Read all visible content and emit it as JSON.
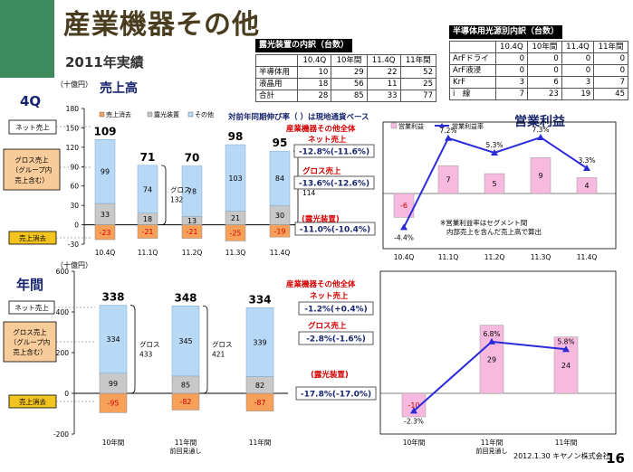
{
  "title": "産業機器その他",
  "subtitle": "2011年実績",
  "page_number": "16",
  "footer": "2012.1.30 キヤノン株式会社",
  "colors": {
    "green": "#3d8a5c",
    "blue": "#b8d9f5",
    "gray": "#c8c8c8",
    "orange": "#f6a05a",
    "pink": "#f7b9dd",
    "line": "#2a2ad8",
    "red": "#d40000",
    "navy": "#17256e"
  },
  "table_exposure": {
    "caption": "露光装置の内訳（台数）",
    "headers": [
      "",
      "10.4Q",
      "10年間",
      "11.4Q",
      "11年間"
    ],
    "rows": [
      [
        "半導体用",
        "10",
        "29",
        "22",
        "52"
      ],
      [
        "液晶用",
        "18",
        "56",
        "11",
        "25"
      ],
      [
        "合計",
        "28",
        "85",
        "33",
        "77"
      ]
    ]
  },
  "table_semis": {
    "caption": "半導体用光源別内訳（台数）",
    "headers": [
      "",
      "10.4Q",
      "10年間",
      "11.4Q",
      "11年間"
    ],
    "rows": [
      [
        "ArFドライ",
        "0",
        "0",
        "0",
        "0"
      ],
      [
        "ArF液浸",
        "0",
        "0",
        "0",
        "0"
      ],
      [
        "KrF",
        "3",
        "6",
        "3",
        "7"
      ],
      [
        "i　線",
        "7",
        "23",
        "19",
        "45"
      ]
    ]
  },
  "labels": {
    "q_title": "4Q",
    "a_title": "年間",
    "unit": "（十億円）",
    "sales_title": "売上高",
    "op_title": "営業利益",
    "legend_sales": [
      "売上消去",
      "露光装置",
      "その他"
    ],
    "legend_op": [
      "営業利益",
      "営業利益率"
    ],
    "yoy_note": "対前年同期伸び率（ ）は現地通貨ベース",
    "ind_total": "産業機器その他全体",
    "net_sales": "ネット売上",
    "gross_sales": "グロス売上",
    "exposure": "(露光装置)",
    "op_note_line1": "※営業利益率はセグメント間",
    "op_note_line2": "内部売上を含んだ売上高で算出",
    "side_net": "ネット売上",
    "side_gross_1": "グロス売上",
    "side_gross_2": "（グループ内",
    "side_gross_3": "売上含む）",
    "side_elim": "売上消去",
    "gross_label": "グロス"
  },
  "yoy_q": {
    "net": "-12.8%(-11.6%)",
    "gross": "-13.6%(-12.6%)",
    "exposure": "-11.0%(-10.4%)"
  },
  "yoy_a": {
    "net": "-1.2%(+0.4%)",
    "gross": "-2.8%(-1.6%)",
    "exposure": "-17.8%(-17.0%)"
  },
  "chart_data": [
    {
      "type": "bar",
      "title": "売上高",
      "stacked": true,
      "categories": [
        "10.4Q",
        "11.1Q",
        "11.2Q",
        "11.3Q",
        "11.4Q"
      ],
      "series": [
        {
          "name": "売上消去",
          "values": [
            -23,
            -21,
            -21,
            -25,
            -19
          ]
        },
        {
          "name": "露光装置",
          "values": [
            33,
            18,
            13,
            21,
            30
          ]
        },
        {
          "name": "その他",
          "values": [
            99,
            74,
            78,
            103,
            84
          ]
        }
      ],
      "totals": [
        109,
        71,
        70,
        98,
        95
      ],
      "gross_annotations": [
        {
          "after_category": "11.1Q",
          "value": 132
        },
        {
          "after_category": "11.4Q",
          "value": 114
        }
      ],
      "ylim": [
        -30,
        180
      ],
      "yticks": [
        -30,
        0,
        30,
        60,
        90,
        120,
        150,
        180
      ],
      "ylabel": "（十億円）"
    },
    {
      "type": "bar",
      "title": "営業利益",
      "categories": [
        "10.4Q",
        "11.1Q",
        "11.2Q",
        "11.3Q",
        "11.4Q"
      ],
      "series": [
        {
          "name": "営業利益",
          "values": [
            -6,
            7,
            5,
            9,
            4
          ]
        },
        {
          "name": "営業利益率",
          "type": "line",
          "values": [
            -4.4,
            7.2,
            5.3,
            7.3,
            3.3
          ],
          "labels": [
            "-4.4%",
            "7.2%",
            "5.3%",
            "7.3%",
            "3.3%"
          ]
        }
      ]
    },
    {
      "type": "bar",
      "title": "売上高",
      "stacked": true,
      "categories": [
        "10年間",
        "11年間",
        "11年間"
      ],
      "category_sublabels": [
        "",
        "前回見通し",
        ""
      ],
      "series": [
        {
          "name": "売上消去",
          "values": [
            -95,
            -82,
            -87
          ]
        },
        {
          "name": "露光装置",
          "values": [
            99,
            85,
            82
          ]
        },
        {
          "name": "その他",
          "values": [
            334,
            345,
            339
          ]
        }
      ],
      "totals": [
        338,
        348,
        334
      ],
      "gross_annotations": [
        {
          "after_category": "10年間",
          "value": 433
        },
        {
          "after_category": "11年間",
          "value": 421
        }
      ],
      "ylim": [
        -200,
        600
      ],
      "yticks": [
        -200,
        0,
        200,
        400,
        600
      ],
      "ylabel": "（十億円）"
    },
    {
      "type": "bar",
      "title": "営業利益",
      "categories": [
        "10年間",
        "11年間",
        "11年間"
      ],
      "category_sublabels": [
        "",
        "前回見通し",
        ""
      ],
      "series": [
        {
          "name": "営業利益",
          "values": [
            -10,
            29,
            24
          ]
        },
        {
          "name": "営業利益率",
          "type": "line",
          "values": [
            -2.3,
            6.8,
            5.8
          ],
          "labels": [
            "-2.3%",
            "6.8%",
            "5.8%"
          ]
        }
      ]
    }
  ]
}
